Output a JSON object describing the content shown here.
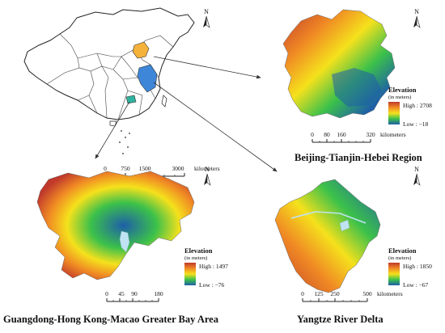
{
  "overview_map": {
    "scale_bar": {
      "ticks": [
        "0",
        "750",
        "1500",
        "3000"
      ],
      "unit": "kilometers"
    },
    "north_label": "N",
    "highlight_colors": {
      "bth": "#f5b23b",
      "yrd": "#3d86d8",
      "gba": "#2fb3a0"
    }
  },
  "panels": {
    "bth": {
      "title": "Beijing-Tianjin-Hebei Region",
      "legend": {
        "title": "Elevation",
        "subtitle": "(in meters)",
        "high": "High : 2708",
        "low": "Low : −18"
      },
      "scale_bar": {
        "ticks": [
          "0",
          "80",
          "160",
          "320"
        ],
        "unit": "kilometers"
      },
      "north_label": "N"
    },
    "gba": {
      "title": "Guangdong-Hong Kong-Macao Greater Bay Area",
      "legend": {
        "title": "Elevation",
        "subtitle": "(in meters)",
        "high": "High : 1497",
        "low": "Low : −76"
      },
      "scale_bar": {
        "ticks": [
          "0",
          "45",
          "90",
          "180"
        ],
        "unit": "kilometers"
      },
      "north_label": "N"
    },
    "yrd": {
      "title": "Yangtze River Delta",
      "legend": {
        "title": "Elevation",
        "subtitle": "(in meters)",
        "high": "High : 1850",
        "low": "Low : −67"
      },
      "scale_bar": {
        "ticks": [
          "0",
          "125",
          "250",
          "500"
        ],
        "unit": "kilometers"
      },
      "north_label": "N"
    }
  },
  "colors": {
    "elev_high": "#c0392b",
    "elev_mid_high": "#f08a24",
    "elev_mid": "#f5e11c",
    "elev_mid_low": "#3cc14a",
    "elev_low": "#1e5fa8",
    "water": "#bfe3f2",
    "outline": "#222222"
  }
}
